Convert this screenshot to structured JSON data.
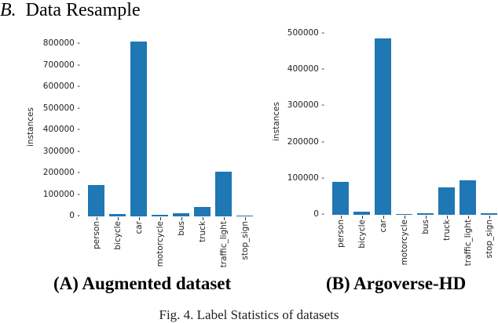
{
  "section": {
    "number": "B.",
    "title": "Data Resample"
  },
  "figure_caption": "Fig. 4. Label Statistics of datasets",
  "panels": [
    {
      "caption": "(A) Augmented dataset"
    },
    {
      "caption": "(B) Argoverse-HD"
    }
  ],
  "chart_data": [
    {
      "type": "bar",
      "title": "(A) Augmented dataset",
      "xlabel": "",
      "ylabel": "instances",
      "categories": [
        "person",
        "bicycle",
        "car",
        "motorcycle",
        "bus",
        "truck",
        "traffic_light",
        "stop_sign"
      ],
      "values": [
        145000,
        10000,
        810000,
        6000,
        14000,
        44000,
        207000,
        2000
      ],
      "yticks": [
        0,
        100000,
        200000,
        300000,
        400000,
        500000,
        600000,
        700000,
        800000
      ],
      "ylim": [
        0,
        820000
      ],
      "grid": false,
      "color": "#1f77b4"
    },
    {
      "type": "bar",
      "title": "(B) Argoverse-HD",
      "xlabel": "",
      "ylabel": "instances",
      "categories": [
        "person",
        "bicycle",
        "car",
        "motorcycle",
        "bus",
        "truck",
        "traffic_light",
        "stop_sign"
      ],
      "values": [
        91000,
        8000,
        487000,
        3000,
        5000,
        76000,
        95000,
        5000
      ],
      "yticks": [
        0,
        100000,
        200000,
        300000,
        400000,
        500000
      ],
      "ylim": [
        0,
        510000
      ],
      "grid": false,
      "color": "#1f77b4"
    }
  ]
}
